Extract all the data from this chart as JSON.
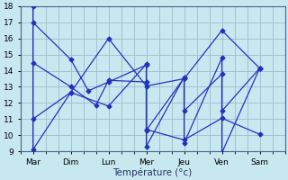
{
  "x_labels": [
    "Mar",
    "Dim",
    "Lun",
    "Mer",
    "Jeu",
    "Ven",
    "Sam"
  ],
  "x_ticks": [
    0.5,
    2.0,
    3.5,
    5.0,
    6.5,
    8.0,
    9.5
  ],
  "series": [
    {
      "name": "line_top",
      "x": [
        0.5,
        0.5,
        2.0,
        3.5,
        5.0,
        6.5,
        8.0,
        9.5
      ],
      "y": [
        18.0,
        9.1,
        12.65,
        16.0,
        13.05,
        13.5,
        16.5,
        14.15
      ]
    },
    {
      "name": "line_high",
      "x": [
        0.5,
        2.0,
        2.7,
        3.5,
        5.0,
        5.0,
        6.5,
        6.5,
        8.0,
        8.0,
        9.5
      ],
      "y": [
        17.0,
        14.7,
        12.75,
        13.3,
        14.35,
        9.3,
        13.6,
        9.5,
        14.8,
        8.9,
        14.15
      ]
    },
    {
      "name": "line_mid",
      "x": [
        0.5,
        2.0,
        3.0,
        3.5,
        5.0,
        5.0,
        6.5,
        6.5,
        8.0,
        8.0,
        9.5
      ],
      "y": [
        14.5,
        13.0,
        11.85,
        13.4,
        13.3,
        10.3,
        13.55,
        11.5,
        13.8,
        11.5,
        14.15
      ]
    },
    {
      "name": "line_low",
      "x": [
        0.5,
        2.0,
        3.5,
        5.0,
        5.0,
        6.5,
        8.0,
        9.5
      ],
      "y": [
        11.0,
        12.65,
        11.8,
        14.4,
        10.35,
        9.7,
        11.05,
        10.05
      ]
    }
  ],
  "color": "#2233bb",
  "bg_color": "#c8e8f0",
  "grid_color": "#9bbccc",
  "xlabel": "Température (°c)",
  "ylim": [
    9,
    18
  ],
  "xlim": [
    0.0,
    10.5
  ],
  "yticks": [
    9,
    10,
    11,
    12,
    13,
    14,
    15,
    16,
    17,
    18
  ],
  "markersize": 2.5,
  "linewidth": 0.9
}
